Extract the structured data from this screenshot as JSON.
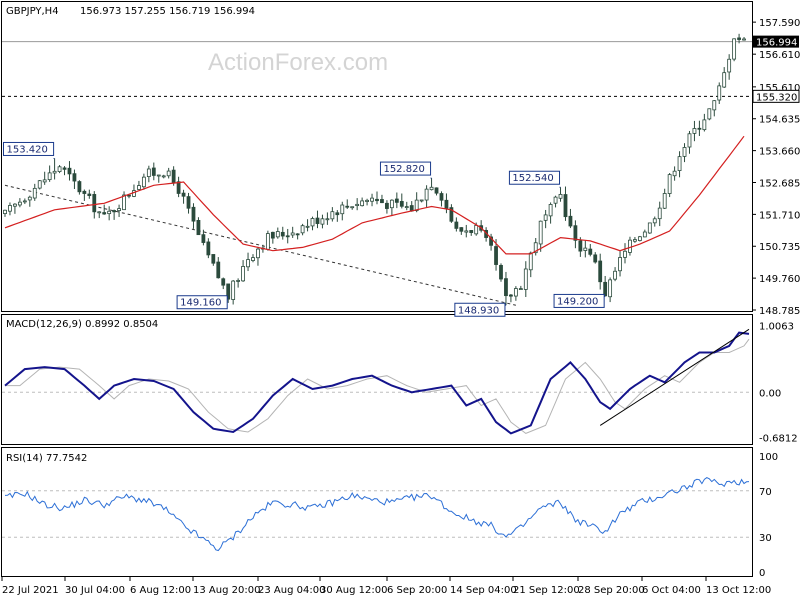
{
  "chart_data": {
    "type": "candlestick",
    "symbol": "GBPJPY,H4",
    "ohlc": "156.973 157.255 156.719 156.994",
    "watermark": "ActionForex.com",
    "colors": {
      "candle": "#2b4a3c",
      "ma": "#d42020",
      "macd": "#14148c",
      "signal": "#b4b4b4",
      "rsi": "#2c6fd6",
      "grid": "#bdbdbd",
      "label_border": "#1a3a8c",
      "price_tag_bg": "#000000"
    },
    "price_axis": {
      "ticks": [
        "157.590",
        "156.610",
        "155.610",
        "154.635",
        "153.660",
        "152.685",
        "151.710",
        "150.735",
        "149.760",
        "148.785"
      ],
      "ylim": [
        148.785,
        157.9
      ]
    },
    "current_price": "156.994",
    "level_line": "155.320",
    "price_annotations": [
      {
        "label": "153.420",
        "value": 153.42,
        "bar": 10
      },
      {
        "label": "149.160",
        "value": 149.16,
        "bar": 45
      },
      {
        "label": "152.820",
        "value": 152.82,
        "bar": 86
      },
      {
        "label": "148.930",
        "value": 148.93,
        "bar": 101
      },
      {
        "label": "152.540",
        "value": 152.54,
        "bar": 112
      },
      {
        "label": "149.200",
        "value": 149.2,
        "bar": 121
      }
    ],
    "price_path": [
      [
        0,
        151.7
      ],
      [
        5,
        152.4
      ],
      [
        11,
        153.2
      ],
      [
        16,
        152.3
      ],
      [
        20,
        151.6
      ],
      [
        24,
        152.2
      ],
      [
        28,
        152.9
      ],
      [
        32,
        153.05
      ],
      [
        35,
        152.5
      ],
      [
        40,
        150.7
      ],
      [
        45,
        149.2
      ],
      [
        49,
        150.4
      ],
      [
        53,
        151.0
      ],
      [
        58,
        151.2
      ],
      [
        62,
        151.5
      ],
      [
        66,
        151.8
      ],
      [
        70,
        152.05
      ],
      [
        74,
        152.2
      ],
      [
        78,
        152.0
      ],
      [
        82,
        151.9
      ],
      [
        86,
        152.7
      ],
      [
        88,
        152.3
      ],
      [
        91,
        151.2
      ],
      [
        95,
        151.3
      ],
      [
        98,
        150.6
      ],
      [
        101,
        149.1
      ],
      [
        104,
        149.6
      ],
      [
        108,
        151.4
      ],
      [
        112,
        152.3
      ],
      [
        115,
        150.8
      ],
      [
        118,
        150.6
      ],
      [
        121,
        149.3
      ],
      [
        124,
        150.3
      ],
      [
        127,
        151.0
      ],
      [
        130,
        151.4
      ],
      [
        133,
        152.4
      ],
      [
        136,
        153.6
      ],
      [
        140,
        154.5
      ],
      [
        143,
        155.1
      ],
      [
        145,
        156.0
      ],
      [
        147,
        157.2
      ],
      [
        149,
        157.0
      ]
    ],
    "ma_path": [
      [
        0,
        151.3
      ],
      [
        10,
        151.85
      ],
      [
        20,
        152.05
      ],
      [
        30,
        152.6
      ],
      [
        36,
        152.7
      ],
      [
        42,
        151.7
      ],
      [
        48,
        150.8
      ],
      [
        54,
        150.6
      ],
      [
        60,
        150.7
      ],
      [
        66,
        150.95
      ],
      [
        72,
        151.45
      ],
      [
        80,
        151.75
      ],
      [
        86,
        151.95
      ],
      [
        90,
        151.85
      ],
      [
        96,
        151.3
      ],
      [
        101,
        150.5
      ],
      [
        106,
        150.5
      ],
      [
        112,
        151.0
      ],
      [
        118,
        150.9
      ],
      [
        124,
        150.6
      ],
      [
        128,
        150.8
      ],
      [
        134,
        151.2
      ],
      [
        140,
        152.3
      ],
      [
        146,
        153.5
      ],
      [
        149,
        154.1
      ]
    ],
    "trendlines": {
      "price_support": {
        "from": {
          "bar": 0,
          "value": 152.6
        },
        "to": {
          "bar": 103,
          "value": 148.93
        }
      },
      "macd_support": {
        "from": {
          "bar": 120,
          "value": -0.5
        },
        "to": {
          "bar": 150,
          "value": 0.95
        }
      }
    },
    "macd": {
      "label": "MACD(12,26,9) 0.8992 0.8504",
      "ticks": [
        "1.0063",
        "0.00",
        "-0.6812"
      ],
      "ylim": [
        -0.72,
        1.06
      ],
      "path": [
        [
          0,
          0.1
        ],
        [
          4,
          0.35
        ],
        [
          8,
          0.38
        ],
        [
          12,
          0.35
        ],
        [
          16,
          0.1
        ],
        [
          19,
          -0.1
        ],
        [
          22,
          0.1
        ],
        [
          26,
          0.2
        ],
        [
          30,
          0.17
        ],
        [
          34,
          0.05
        ],
        [
          38,
          -0.3
        ],
        [
          42,
          -0.55
        ],
        [
          46,
          -0.6
        ],
        [
          50,
          -0.4
        ],
        [
          54,
          -0.05
        ],
        [
          58,
          0.2
        ],
        [
          62,
          0.05
        ],
        [
          66,
          0.1
        ],
        [
          70,
          0.2
        ],
        [
          74,
          0.25
        ],
        [
          78,
          0.1
        ],
        [
          82,
          0.0
        ],
        [
          86,
          0.05
        ],
        [
          90,
          0.1
        ],
        [
          93,
          -0.2
        ],
        [
          96,
          -0.1
        ],
        [
          99,
          -0.45
        ],
        [
          102,
          -0.62
        ],
        [
          106,
          -0.5
        ],
        [
          110,
          0.2
        ],
        [
          114,
          0.45
        ],
        [
          117,
          0.2
        ],
        [
          120,
          -0.15
        ],
        [
          122,
          -0.25
        ],
        [
          126,
          0.05
        ],
        [
          130,
          0.25
        ],
        [
          133,
          0.15
        ],
        [
          137,
          0.45
        ],
        [
          140,
          0.6
        ],
        [
          143,
          0.6
        ],
        [
          146,
          0.7
        ],
        [
          148,
          0.9
        ],
        [
          150,
          0.88
        ]
      ],
      "signal_offset_bars": 3
    },
    "rsi": {
      "label": "RSI(14) 77.7542",
      "ticks": [
        "100",
        "70",
        "30",
        "0"
      ],
      "ylim": [
        0,
        100
      ],
      "levels": [
        70,
        30
      ],
      "path": [
        [
          0,
          64
        ],
        [
          4,
          68
        ],
        [
          8,
          58
        ],
        [
          12,
          55
        ],
        [
          16,
          62
        ],
        [
          20,
          58
        ],
        [
          24,
          65
        ],
        [
          28,
          62
        ],
        [
          32,
          55
        ],
        [
          36,
          40
        ],
        [
          40,
          28
        ],
        [
          43,
          20
        ],
        [
          46,
          30
        ],
        [
          50,
          48
        ],
        [
          54,
          60
        ],
        [
          58,
          58
        ],
        [
          62,
          55
        ],
        [
          66,
          60
        ],
        [
          70,
          66
        ],
        [
          74,
          62
        ],
        [
          78,
          60
        ],
        [
          82,
          64
        ],
        [
          86,
          66
        ],
        [
          90,
          52
        ],
        [
          94,
          45
        ],
        [
          98,
          40
        ],
        [
          101,
          30
        ],
        [
          104,
          38
        ],
        [
          108,
          55
        ],
        [
          112,
          60
        ],
        [
          115,
          45
        ],
        [
          118,
          40
        ],
        [
          121,
          35
        ],
        [
          124,
          50
        ],
        [
          128,
          60
        ],
        [
          132,
          65
        ],
        [
          135,
          70
        ],
        [
          138,
          74
        ],
        [
          141,
          80
        ],
        [
          144,
          76
        ],
        [
          147,
          78
        ],
        [
          150,
          77.75
        ]
      ]
    },
    "time_axis": [
      "22 Jul 2021",
      "30 Jul 04:00",
      "6 Aug 12:00",
      "13 Aug 20:00",
      "23 Aug 04:00",
      "30 Aug 12:00",
      "6 Sep 20:00",
      "14 Sep 04:00",
      "21 Sep 12:00",
      "28 Sep 20:00",
      "6 Oct 04:00",
      "13 Oct 12:00"
    ]
  }
}
